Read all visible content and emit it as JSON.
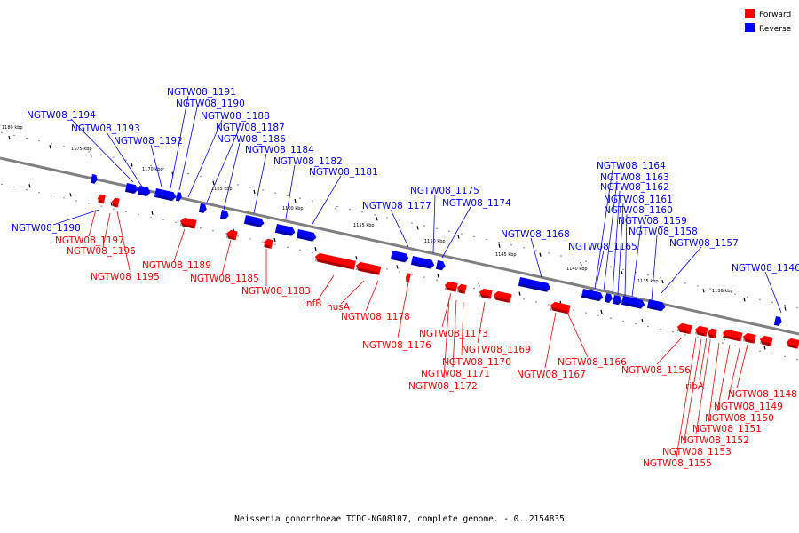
{
  "caption": "Neisseria gonorrhoeae TCDC-NG08107, complete genome. - 0..2154835",
  "legend": [
    {
      "label": "Forward",
      "color": "#ff0000"
    },
    {
      "label": "Reverse",
      "color": "#0000ff"
    }
  ],
  "colors": {
    "forward": "#ff0000",
    "reverse": "#0000ff",
    "axis": "#7f7f7f"
  },
  "ticks": [
    "1180 kbp",
    "1175 kbp",
    "1170 kbp",
    "1165 kbp",
    "1160 kbp",
    "1155 kbp",
    "1150 kbp",
    "1145 kbp",
    "1140 kbp",
    "1135 kbp",
    "1130 kbp"
  ],
  "reverse_labels": [
    "NGTW08_1191",
    "NGTW08_1190",
    "NGTW08_1194",
    "NGTW08_1188",
    "NGTW08_1193",
    "NGTW08_1187",
    "NGTW08_1192",
    "NGTW08_1186",
    "NGTW08_1184",
    "NGTW08_1182",
    "NGTW08_1181",
    "NGTW08_1198",
    "NGTW08_1175",
    "NGTW08_1177",
    "NGTW08_1174",
    "NGTW08_1164",
    "NGTW08_1163",
    "NGTW08_1162",
    "NGTW08_1161",
    "NGTW08_1160",
    "NGTW08_1159",
    "NGTW08_1158",
    "NGTW08_1168",
    "NGTW08_1165",
    "NGTW08_1157",
    "NGTW08_1146"
  ],
  "forward_labels": [
    "NGTW08_1197",
    "NGTW08_1196",
    "NGTW08_1195",
    "NGTW08_1189",
    "NGTW08_1185",
    "NGTW08_1183",
    "infB",
    "nusA",
    "NGTW08_1178",
    "NGTW08_1176",
    "NGTW08_1173",
    "NGTW08_1169",
    "NGTW08_1170",
    "NGTW08_1171",
    "NGTW08_1172",
    "NGTW08_1166",
    "NGTW08_1167",
    "NGTW08_1156",
    "ribA",
    "NGTW08_1148",
    "NGTW08_1149",
    "NGTW08_1150",
    "NGTW08_1151",
    "NGTW08_1152",
    "NGTW08_1153",
    "NGTW08_1155"
  ]
}
